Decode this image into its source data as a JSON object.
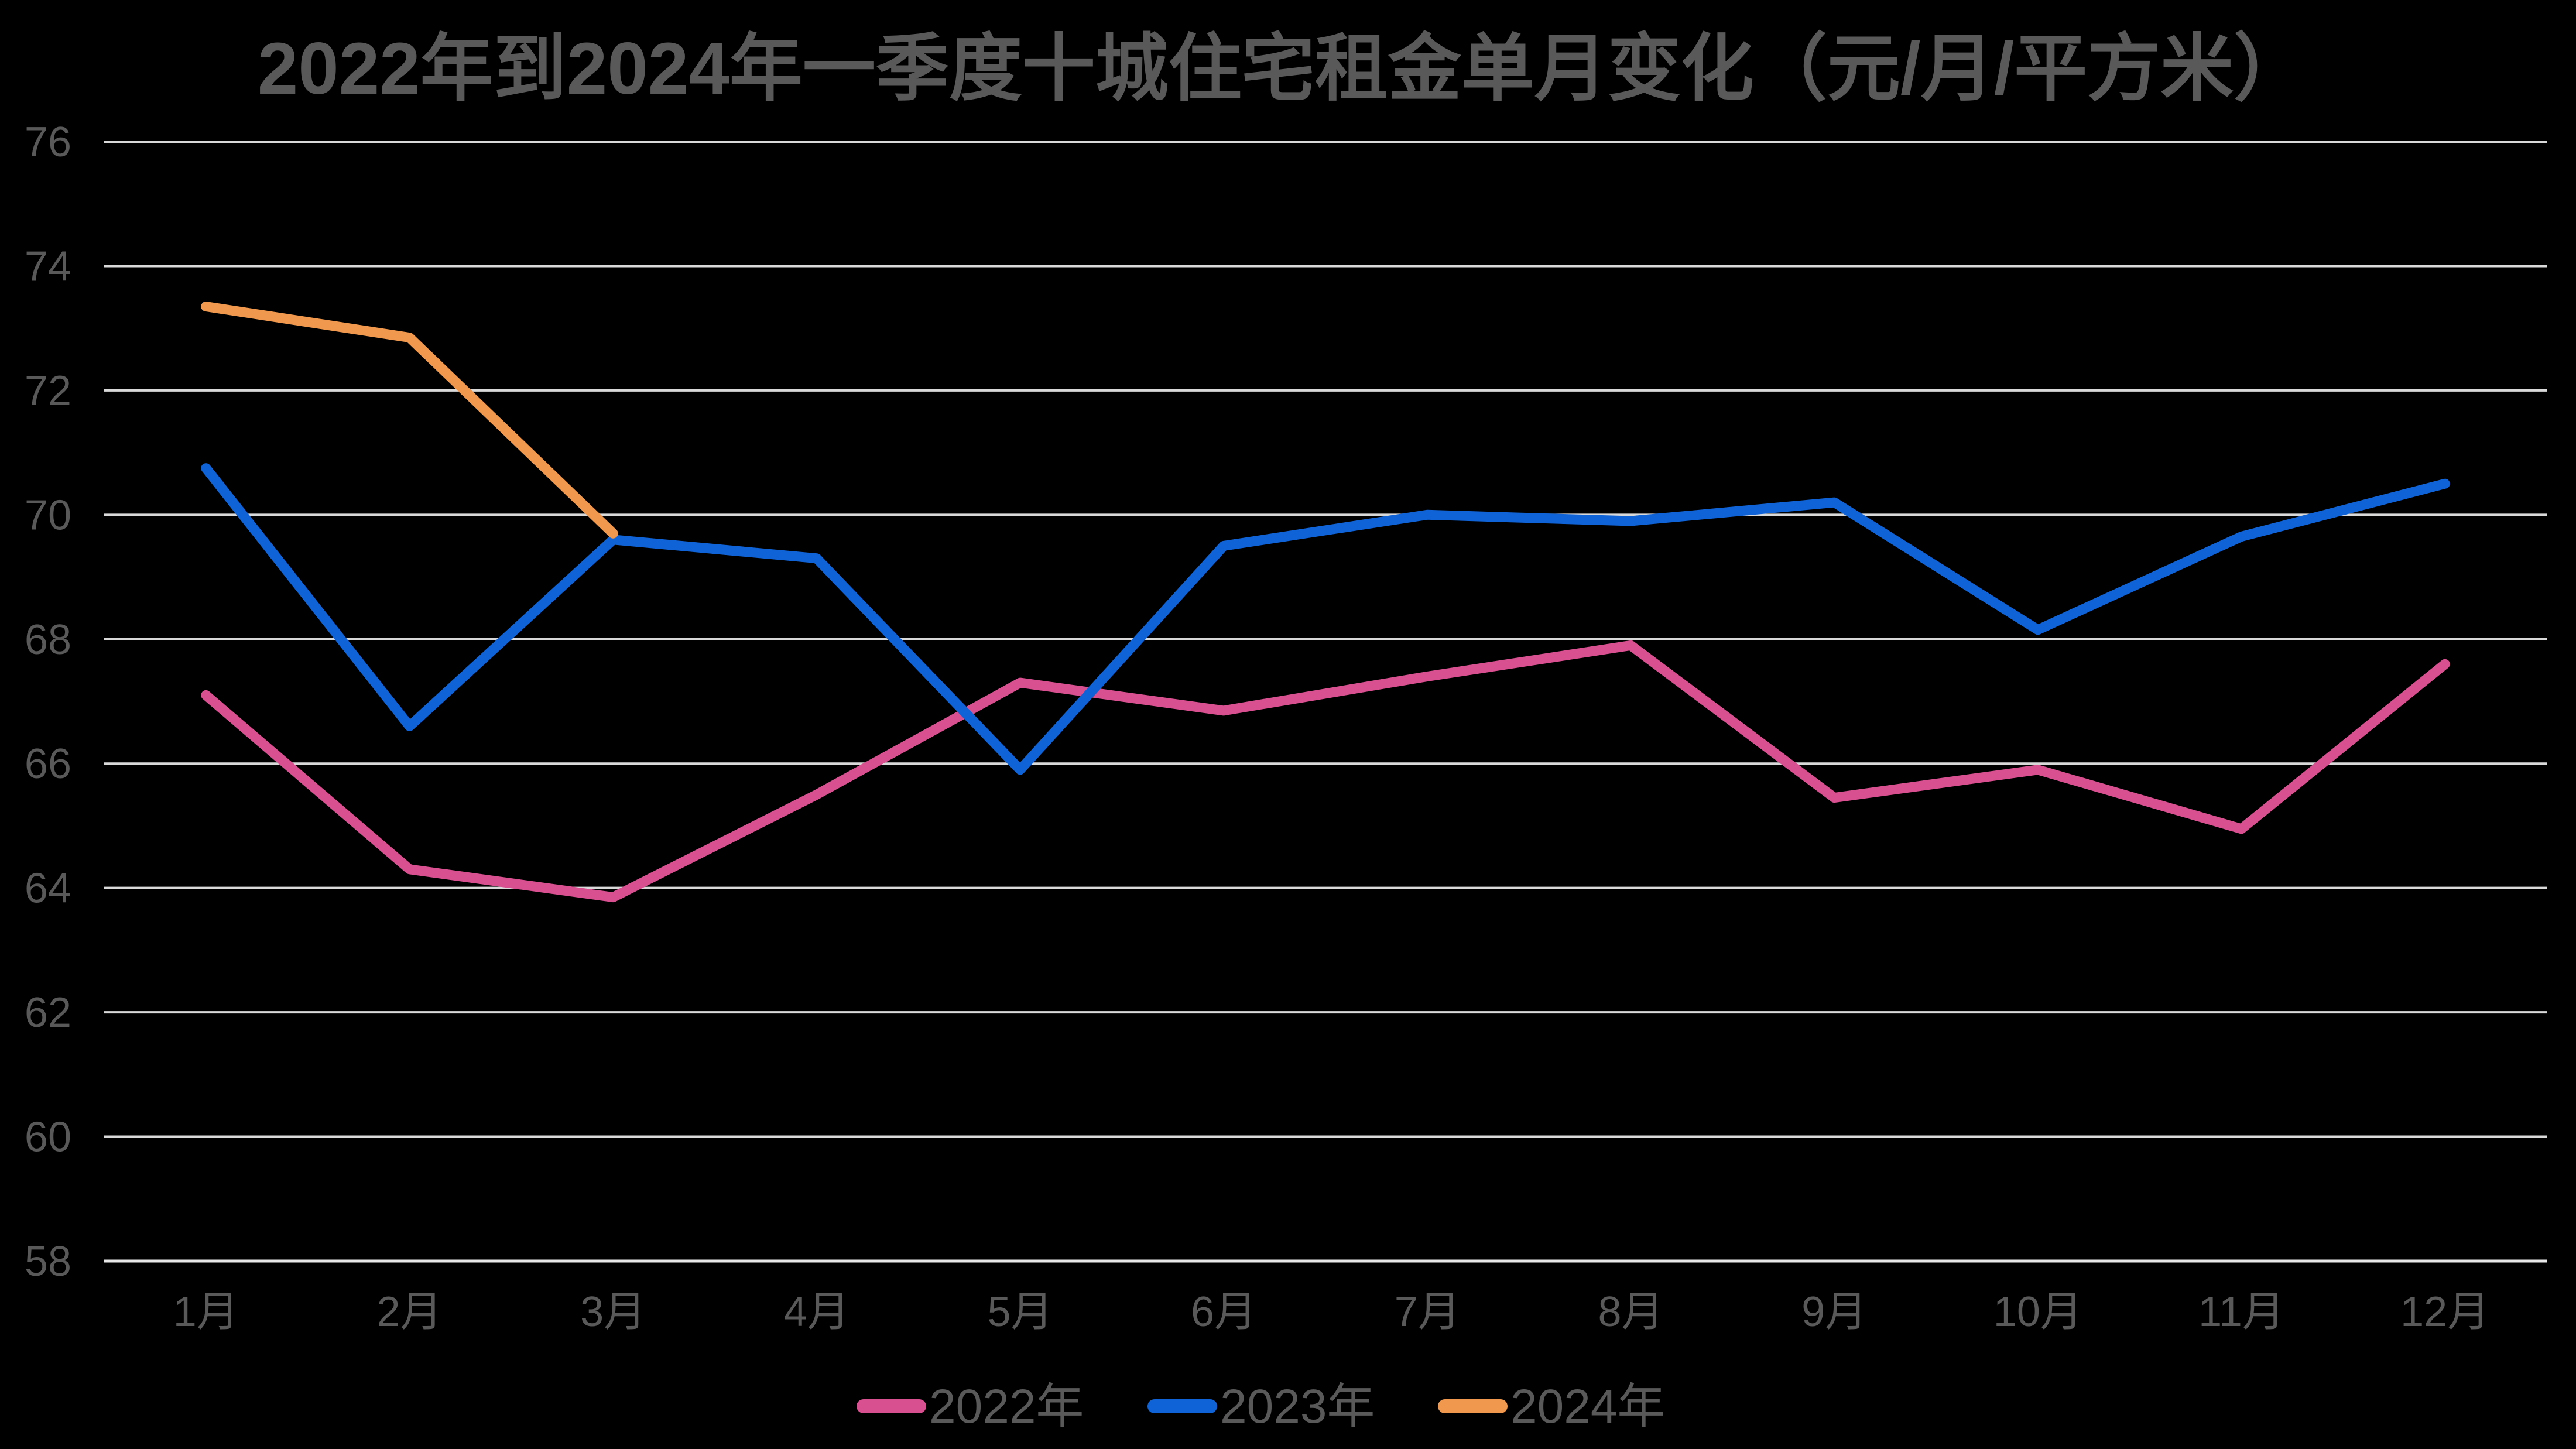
{
  "chart_data": {
    "type": "line",
    "title": "2022年到2024年一季度十城住宅租金单月变化（元/月/平方米）",
    "categories": [
      "1月",
      "2月",
      "3月",
      "4月",
      "5月",
      "6月",
      "7月",
      "8月",
      "9月",
      "10月",
      "11月",
      "12月"
    ],
    "series": [
      {
        "name": "2022年",
        "color": "#D8508F",
        "values": [
          67.1,
          64.3,
          63.85,
          65.5,
          67.3,
          66.85,
          67.4,
          67.9,
          65.45,
          65.9,
          64.95,
          67.6
        ]
      },
      {
        "name": "2023年",
        "color": "#1063D6",
        "values": [
          70.75,
          66.6,
          69.6,
          69.3,
          65.9,
          69.5,
          70.0,
          69.9,
          70.2,
          68.15,
          69.65,
          70.5
        ]
      },
      {
        "name": "2024年",
        "color": "#F0994E",
        "values": [
          73.35,
          72.85,
          69.7
        ]
      }
    ],
    "ylim": [
      58,
      76
    ],
    "ytick_step": 2,
    "ytick_labels": [
      "58",
      "60",
      "62",
      "64",
      "66",
      "68",
      "70",
      "72",
      "74",
      "76"
    ],
    "grid": true,
    "legend_position": "bottom",
    "legend_labels": [
      "2022年",
      "2023年",
      "2024年"
    ],
    "colors": {
      "background": "#000000",
      "grid_line": "#D9D9D9",
      "axis_line": "#E8E8E8",
      "text": "#595959"
    }
  }
}
